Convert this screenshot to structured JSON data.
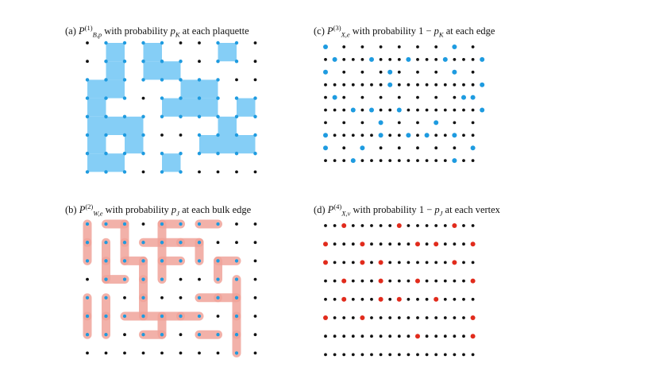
{
  "panels": [
    {
      "id": "a",
      "prefix": "(a)",
      "symbol": "P",
      "sup": "(1)",
      "sub": "B,p",
      "text_before_p": " with probability ",
      "p_symbol": "p",
      "p_sub": "K",
      "one_minus": "",
      "suffix": " at each plaquette",
      "kind": "plaquette",
      "plaquettes": [
        [
          1,
          0
        ],
        [
          3,
          0
        ],
        [
          7,
          0
        ],
        [
          1,
          1
        ],
        [
          4,
          1
        ],
        [
          0,
          2
        ],
        [
          1,
          2
        ],
        [
          5,
          2
        ],
        [
          6,
          2
        ],
        [
          0,
          3
        ],
        [
          4,
          3
        ],
        [
          6,
          3
        ],
        [
          8,
          3
        ],
        [
          0,
          4
        ],
        [
          2,
          4
        ],
        [
          7,
          4
        ],
        [
          0,
          5
        ],
        [
          2,
          5
        ],
        [
          6,
          5
        ],
        [
          7,
          5
        ],
        [
          8,
          5
        ],
        [
          0,
          6
        ],
        [
          1,
          6
        ],
        [
          4,
          6
        ],
        [
          4,
          7
        ],
        [
          2,
          7
        ],
        [
          5,
          7
        ],
        [
          8,
          7
        ],
        [
          1,
          4
        ],
        [
          3,
          1
        ],
        [
          5,
          3
        ]
      ]
    },
    {
      "id": "b",
      "prefix": "(b)",
      "symbol": "P",
      "sup": "(2)",
      "sub": "W,e",
      "text_before_p": " with probability ",
      "p_symbol": "p",
      "p_sub": "J",
      "one_minus": "",
      "suffix": " at each bulk edge",
      "kind": "edges",
      "edges": [
        [
          0,
          0,
          "v"
        ],
        [
          0,
          1,
          "v"
        ],
        [
          1,
          0,
          "h"
        ],
        [
          2,
          0,
          "v"
        ],
        [
          2,
          1,
          "v"
        ],
        [
          4,
          0,
          "h"
        ],
        [
          4,
          0,
          "v"
        ],
        [
          4,
          1,
          "v"
        ],
        [
          6,
          0,
          "h"
        ],
        [
          3,
          1,
          "h"
        ],
        [
          4,
          1,
          "h"
        ],
        [
          5,
          1,
          "h"
        ],
        [
          6,
          1,
          "v"
        ],
        [
          1,
          1,
          "v"
        ],
        [
          1,
          2,
          "v"
        ],
        [
          2,
          2,
          "h"
        ],
        [
          3,
          2,
          "v"
        ],
        [
          3,
          3,
          "v"
        ],
        [
          3,
          4,
          "v"
        ],
        [
          4,
          2,
          "v"
        ],
        [
          4,
          2,
          "h"
        ],
        [
          7,
          2,
          "h"
        ],
        [
          7,
          2,
          "v"
        ],
        [
          1,
          3,
          "h"
        ],
        [
          0,
          4,
          "v"
        ],
        [
          0,
          5,
          "v"
        ],
        [
          1,
          4,
          "v"
        ],
        [
          1,
          5,
          "v"
        ],
        [
          2,
          5,
          "h"
        ],
        [
          3,
          5,
          "h"
        ],
        [
          4,
          5,
          "h"
        ],
        [
          4,
          5,
          "v"
        ],
        [
          3,
          6,
          "h"
        ],
        [
          5,
          5,
          "h"
        ],
        [
          6,
          6,
          "h"
        ],
        [
          8,
          3,
          "v"
        ],
        [
          8,
          4,
          "v"
        ],
        [
          8,
          5,
          "v"
        ],
        [
          8,
          6,
          "v"
        ],
        [
          6,
          4,
          "h"
        ],
        [
          7,
          4,
          "h"
        ]
      ]
    },
    {
      "id": "c",
      "prefix": "(c)",
      "symbol": "P",
      "sup": "(3)",
      "sub": "X,e",
      "text_before_p": " with probability ",
      "p_symbol": "p",
      "p_sub": "K",
      "one_minus": "1 − ",
      "suffix": " at each edge",
      "kind": "edge-dots",
      "edge_dots": [
        [
          0,
          0,
          "v"
        ],
        [
          7,
          0,
          "v"
        ],
        [
          0,
          1,
          "h"
        ],
        [
          2,
          1,
          "h"
        ],
        [
          4,
          1,
          "h"
        ],
        [
          6,
          1,
          "h"
        ],
        [
          8,
          1,
          "h"
        ],
        [
          0,
          2,
          "v"
        ],
        [
          3,
          2,
          "h"
        ],
        [
          7,
          2,
          "v"
        ],
        [
          8,
          3,
          "h"
        ],
        [
          3,
          3,
          "h"
        ],
        [
          0,
          4,
          "h"
        ],
        [
          7,
          4,
          "h"
        ],
        [
          8,
          4,
          "v"
        ],
        [
          8,
          5,
          "h"
        ],
        [
          1,
          5,
          "h"
        ],
        [
          4,
          5,
          "v"
        ],
        [
          6,
          6,
          "v"
        ],
        [
          3,
          7,
          "v"
        ],
        [
          0,
          7,
          "v"
        ],
        [
          4,
          7,
          "h"
        ],
        [
          5,
          7,
          "h"
        ],
        [
          7,
          7,
          "v"
        ],
        [
          2,
          8,
          "v"
        ],
        [
          1,
          9,
          "h"
        ],
        [
          0,
          8,
          "v"
        ],
        [
          7,
          9,
          "v"
        ],
        [
          8,
          8,
          "v"
        ],
        [
          2,
          5,
          "h"
        ],
        [
          3,
          6,
          "v"
        ]
      ]
    },
    {
      "id": "d",
      "prefix": "(d)",
      "symbol": "P",
      "sup": "(4)",
      "sub": "X,v",
      "text_before_p": " with probability ",
      "p_symbol": "p",
      "p_sub": "J",
      "one_minus": "1 − ",
      "suffix": " at each vertex",
      "kind": "vertex-dots",
      "vertex_dots": [
        [
          1,
          0
        ],
        [
          4,
          0
        ],
        [
          7,
          0
        ],
        [
          0,
          1
        ],
        [
          2,
          1
        ],
        [
          5,
          1
        ],
        [
          6,
          1
        ],
        [
          8,
          1
        ],
        [
          0,
          2
        ],
        [
          2,
          2
        ],
        [
          3,
          2
        ],
        [
          7,
          2
        ],
        [
          1,
          3
        ],
        [
          3,
          3
        ],
        [
          4,
          4
        ],
        [
          5,
          3
        ],
        [
          8,
          3
        ],
        [
          1,
          4
        ],
        [
          6,
          4
        ],
        [
          0,
          5
        ],
        [
          2,
          5
        ],
        [
          8,
          5
        ],
        [
          5,
          6
        ],
        [
          8,
          6
        ],
        [
          3,
          4
        ]
      ]
    }
  ],
  "colors": {
    "lattice_dot": "#111111",
    "plaquette_fill": "#7ecbf5",
    "blue_dot": "#1e9be0",
    "edge_fill": "#f0a39a",
    "red_dot": "#e12b1c"
  }
}
